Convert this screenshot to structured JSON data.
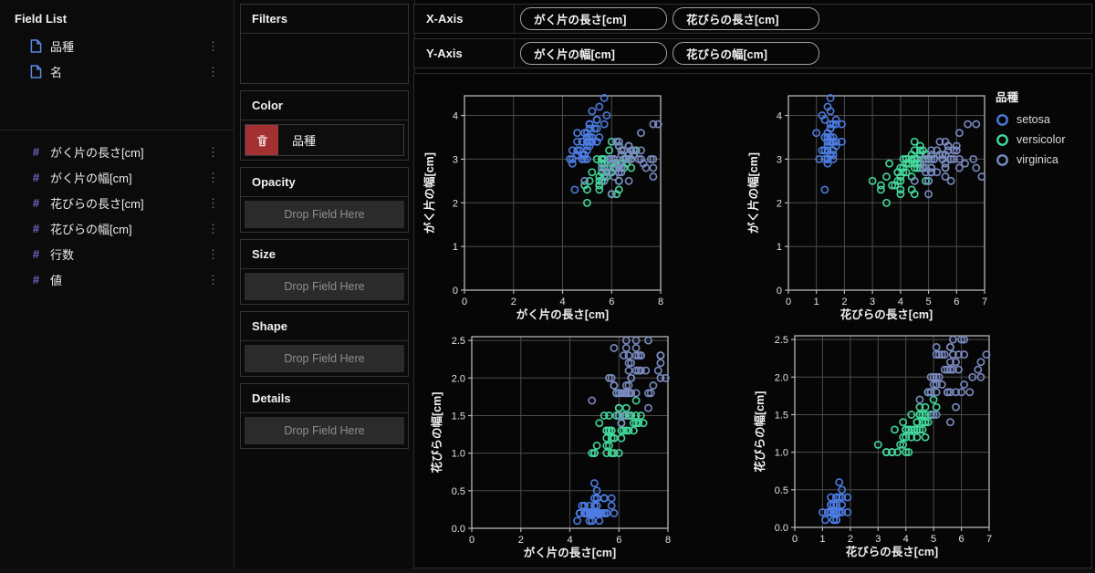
{
  "sidebar": {
    "title": "Field List",
    "dimension_fields": [
      {
        "label": "品種"
      },
      {
        "label": "名"
      }
    ],
    "measure_fields": [
      {
        "label": "がく片の長さ[cm]"
      },
      {
        "label": "がく片の幅[cm]"
      },
      {
        "label": "花びらの長さ[cm]"
      },
      {
        "label": "花びらの幅[cm]"
      },
      {
        "label": "行数"
      },
      {
        "label": "値"
      }
    ]
  },
  "icons": {
    "numeric_field": "#",
    "menu": "⋮"
  },
  "encoding_panel": {
    "filters": {
      "title": "Filters"
    },
    "color": {
      "title": "Color",
      "field": "品種"
    },
    "opacity": {
      "title": "Opacity",
      "placeholder": "Drop Field Here"
    },
    "size": {
      "title": "Size",
      "placeholder": "Drop Field Here"
    },
    "shape": {
      "title": "Shape",
      "placeholder": "Drop Field Here"
    },
    "details": {
      "title": "Details",
      "placeholder": "Drop Field Here"
    }
  },
  "axis_shelf": {
    "x_label": "X-Axis",
    "x_fields": [
      "がく片の長さ[cm]",
      "花びらの長さ[cm]"
    ],
    "y_label": "Y-Axis",
    "y_fields": [
      "がく片の幅[cm]",
      "花びらの幅[cm]"
    ]
  },
  "legend": {
    "title": "品種",
    "items": [
      {
        "label": "setosa",
        "color": "#4d7ce2"
      },
      {
        "label": "versicolor",
        "color": "#45d99c"
      },
      {
        "label": "virginica",
        "color": "#7b8cc2"
      }
    ]
  },
  "chart_data": {
    "type": "scatter",
    "grid": true,
    "legend_position": "top-right",
    "point_columns": [
      "がく片の長さ[cm]",
      "がく片の幅[cm]",
      "花びらの長さ[cm]",
      "花びらの幅[cm]"
    ],
    "charts": [
      {
        "xi": 0,
        "yi": 1,
        "xlabel": "がく片の長さ[cm]",
        "ylabel": "がく片の幅[cm]",
        "xlim": [
          0,
          8
        ],
        "ylim": [
          0,
          4.45
        ],
        "xticks": [
          [
            0,
            "0"
          ],
          [
            2,
            "2"
          ],
          [
            4,
            "4"
          ],
          [
            6,
            "6"
          ],
          [
            8,
            "8"
          ]
        ],
        "yticks": [
          [
            0,
            "0"
          ],
          [
            1,
            "1"
          ],
          [
            2,
            "2"
          ],
          [
            3,
            "3"
          ],
          [
            4,
            "4"
          ]
        ]
      },
      {
        "xi": 2,
        "yi": 1,
        "xlabel": "花びらの長さ[cm]",
        "ylabel": "がく片の幅[cm]",
        "xlim": [
          0,
          7
        ],
        "ylim": [
          0,
          4.45
        ],
        "xticks": [
          [
            0,
            "0"
          ],
          [
            1,
            "1"
          ],
          [
            2,
            "2"
          ],
          [
            3,
            "3"
          ],
          [
            4,
            "4"
          ],
          [
            5,
            "5"
          ],
          [
            6,
            "6"
          ],
          [
            7,
            "7"
          ]
        ],
        "yticks": [
          [
            0,
            "0"
          ],
          [
            1,
            "1"
          ],
          [
            2,
            "2"
          ],
          [
            3,
            "3"
          ],
          [
            4,
            "4"
          ]
        ]
      },
      {
        "xi": 0,
        "yi": 3,
        "xlabel": "がく片の長さ[cm]",
        "ylabel": "花びらの幅[cm]",
        "xlim": [
          0,
          8
        ],
        "ylim": [
          0,
          2.55
        ],
        "xticks": [
          [
            0,
            "0"
          ],
          [
            2,
            "2"
          ],
          [
            4,
            "4"
          ],
          [
            6,
            "6"
          ],
          [
            8,
            "8"
          ]
        ],
        "yticks": [
          [
            0,
            "0.0"
          ],
          [
            0.5,
            "0.5"
          ],
          [
            1,
            "1.0"
          ],
          [
            1.5,
            "1.5"
          ],
          [
            2,
            "2.0"
          ],
          [
            2.5,
            "2.5"
          ]
        ]
      },
      {
        "xi": 2,
        "yi": 3,
        "xlabel": "花びらの長さ[cm]",
        "ylabel": "花びらの幅[cm]",
        "xlim": [
          0,
          7
        ],
        "ylim": [
          0,
          2.55
        ],
        "xticks": [
          [
            0,
            "0"
          ],
          [
            1,
            "1"
          ],
          [
            2,
            "2"
          ],
          [
            3,
            "3"
          ],
          [
            4,
            "4"
          ],
          [
            5,
            "5"
          ],
          [
            6,
            "6"
          ],
          [
            7,
            "7"
          ]
        ],
        "yticks": [
          [
            0,
            "0.0"
          ],
          [
            0.5,
            "0.5"
          ],
          [
            1,
            "1.0"
          ],
          [
            1.5,
            "1.5"
          ],
          [
            2,
            "2.0"
          ],
          [
            2.5,
            "2.5"
          ]
        ]
      }
    ],
    "series": [
      {
        "name": "setosa",
        "color": "#4d7ce2",
        "points": [
          [
            5.1,
            3.5,
            1.4,
            0.2
          ],
          [
            4.9,
            3.0,
            1.4,
            0.2
          ],
          [
            4.7,
            3.2,
            1.3,
            0.2
          ],
          [
            4.6,
            3.1,
            1.5,
            0.2
          ],
          [
            5.0,
            3.6,
            1.4,
            0.2
          ],
          [
            5.4,
            3.9,
            1.7,
            0.4
          ],
          [
            4.6,
            3.4,
            1.4,
            0.3
          ],
          [
            5.0,
            3.4,
            1.5,
            0.2
          ],
          [
            4.4,
            2.9,
            1.4,
            0.2
          ],
          [
            4.9,
            3.1,
            1.5,
            0.1
          ],
          [
            5.4,
            3.7,
            1.5,
            0.2
          ],
          [
            4.8,
            3.4,
            1.6,
            0.2
          ],
          [
            4.8,
            3.0,
            1.4,
            0.1
          ],
          [
            4.3,
            3.0,
            1.1,
            0.1
          ],
          [
            5.8,
            4.0,
            1.2,
            0.2
          ],
          [
            5.7,
            4.4,
            1.5,
            0.4
          ],
          [
            5.4,
            3.9,
            1.3,
            0.4
          ],
          [
            5.1,
            3.5,
            1.4,
            0.3
          ],
          [
            5.7,
            3.8,
            1.7,
            0.3
          ],
          [
            5.1,
            3.8,
            1.5,
            0.3
          ],
          [
            5.4,
            3.4,
            1.7,
            0.2
          ],
          [
            5.1,
            3.7,
            1.5,
            0.4
          ],
          [
            4.6,
            3.6,
            1.0,
            0.2
          ],
          [
            5.1,
            3.3,
            1.7,
            0.5
          ],
          [
            4.8,
            3.4,
            1.9,
            0.2
          ],
          [
            5.0,
            3.0,
            1.6,
            0.2
          ],
          [
            5.0,
            3.4,
            1.6,
            0.4
          ],
          [
            5.2,
            3.5,
            1.5,
            0.2
          ],
          [
            5.2,
            3.4,
            1.4,
            0.2
          ],
          [
            4.7,
            3.2,
            1.6,
            0.2
          ],
          [
            4.8,
            3.1,
            1.6,
            0.2
          ],
          [
            5.4,
            3.4,
            1.5,
            0.4
          ],
          [
            5.2,
            4.1,
            1.5,
            0.1
          ],
          [
            5.5,
            4.2,
            1.4,
            0.2
          ],
          [
            4.9,
            3.1,
            1.5,
            0.2
          ],
          [
            5.0,
            3.2,
            1.2,
            0.2
          ],
          [
            5.5,
            3.5,
            1.3,
            0.2
          ],
          [
            4.9,
            3.6,
            1.4,
            0.1
          ],
          [
            4.4,
            3.0,
            1.3,
            0.2
          ],
          [
            5.1,
            3.4,
            1.5,
            0.2
          ],
          [
            5.0,
            3.5,
            1.3,
            0.3
          ],
          [
            4.5,
            2.3,
            1.3,
            0.3
          ],
          [
            4.4,
            3.2,
            1.3,
            0.2
          ],
          [
            5.0,
            3.5,
            1.6,
            0.6
          ],
          [
            5.1,
            3.8,
            1.9,
            0.4
          ],
          [
            4.8,
            3.0,
            1.4,
            0.3
          ],
          [
            5.1,
            3.8,
            1.6,
            0.2
          ],
          [
            4.6,
            3.2,
            1.4,
            0.2
          ],
          [
            5.3,
            3.7,
            1.5,
            0.2
          ],
          [
            5.0,
            3.3,
            1.4,
            0.2
          ]
        ]
      },
      {
        "name": "versicolor",
        "color": "#45d99c",
        "points": [
          [
            7.0,
            3.2,
            4.7,
            1.4
          ],
          [
            6.4,
            3.2,
            4.5,
            1.5
          ],
          [
            6.9,
            3.1,
            4.9,
            1.5
          ],
          [
            5.5,
            2.3,
            4.0,
            1.3
          ],
          [
            6.5,
            2.8,
            4.6,
            1.5
          ],
          [
            5.7,
            2.8,
            4.5,
            1.3
          ],
          [
            6.3,
            3.3,
            4.7,
            1.6
          ],
          [
            4.9,
            2.4,
            3.3,
            1.0
          ],
          [
            6.6,
            2.9,
            4.6,
            1.3
          ],
          [
            5.2,
            2.7,
            3.9,
            1.4
          ],
          [
            5.0,
            2.0,
            3.5,
            1.0
          ],
          [
            5.9,
            3.0,
            4.2,
            1.5
          ],
          [
            6.0,
            2.2,
            4.0,
            1.0
          ],
          [
            6.1,
            2.9,
            4.7,
            1.4
          ],
          [
            5.6,
            2.9,
            3.6,
            1.3
          ],
          [
            6.7,
            3.1,
            4.4,
            1.4
          ],
          [
            5.6,
            3.0,
            4.5,
            1.5
          ],
          [
            5.8,
            2.7,
            4.1,
            1.0
          ],
          [
            6.2,
            2.2,
            4.5,
            1.5
          ],
          [
            5.6,
            2.5,
            3.9,
            1.1
          ],
          [
            5.9,
            3.2,
            4.8,
            1.8
          ],
          [
            6.1,
            2.8,
            4.0,
            1.3
          ],
          [
            6.3,
            2.5,
            4.9,
            1.5
          ],
          [
            6.1,
            2.8,
            4.7,
            1.2
          ],
          [
            6.4,
            2.9,
            4.3,
            1.3
          ],
          [
            6.6,
            3.0,
            4.4,
            1.4
          ],
          [
            6.8,
            2.8,
            4.8,
            1.4
          ],
          [
            6.7,
            3.0,
            5.0,
            1.7
          ],
          [
            6.0,
            2.9,
            4.5,
            1.5
          ],
          [
            5.7,
            2.6,
            3.5,
            1.0
          ],
          [
            5.5,
            2.4,
            3.8,
            1.1
          ],
          [
            5.5,
            2.4,
            3.7,
            1.0
          ],
          [
            5.8,
            2.7,
            3.9,
            1.2
          ],
          [
            6.0,
            2.7,
            5.1,
            1.6
          ],
          [
            5.4,
            3.0,
            4.5,
            1.5
          ],
          [
            6.0,
            3.4,
            4.5,
            1.6
          ],
          [
            6.7,
            3.1,
            4.7,
            1.5
          ],
          [
            6.3,
            2.3,
            4.4,
            1.3
          ],
          [
            5.6,
            3.0,
            4.1,
            1.3
          ],
          [
            5.5,
            2.5,
            4.0,
            1.3
          ],
          [
            5.5,
            2.6,
            4.4,
            1.2
          ],
          [
            6.1,
            3.0,
            4.6,
            1.4
          ],
          [
            5.8,
            2.6,
            4.0,
            1.2
          ],
          [
            5.0,
            2.3,
            3.3,
            1.0
          ],
          [
            5.6,
            2.7,
            4.2,
            1.3
          ],
          [
            5.7,
            3.0,
            4.2,
            1.2
          ],
          [
            5.7,
            2.9,
            4.2,
            1.3
          ],
          [
            6.2,
            2.9,
            4.3,
            1.3
          ],
          [
            5.1,
            2.5,
            3.0,
            1.1
          ],
          [
            5.7,
            2.8,
            4.1,
            1.3
          ]
        ]
      },
      {
        "name": "virginica",
        "color": "#7b8cc2",
        "points": [
          [
            6.3,
            3.3,
            6.0,
            2.5
          ],
          [
            5.8,
            2.7,
            5.1,
            1.9
          ],
          [
            7.1,
            3.0,
            5.9,
            2.1
          ],
          [
            6.3,
            2.9,
            5.6,
            1.8
          ],
          [
            6.5,
            3.0,
            5.8,
            2.2
          ],
          [
            7.6,
            3.0,
            6.6,
            2.1
          ],
          [
            4.9,
            2.5,
            4.5,
            1.7
          ],
          [
            7.3,
            2.9,
            6.3,
            1.8
          ],
          [
            6.7,
            2.5,
            5.8,
            1.8
          ],
          [
            7.2,
            3.6,
            6.1,
            2.5
          ],
          [
            6.5,
            3.2,
            5.1,
            2.0
          ],
          [
            6.4,
            2.7,
            5.3,
            1.9
          ],
          [
            6.8,
            3.0,
            5.5,
            2.1
          ],
          [
            5.7,
            2.5,
            5.0,
            2.0
          ],
          [
            5.8,
            2.8,
            5.1,
            2.4
          ],
          [
            6.4,
            3.2,
            5.3,
            2.3
          ],
          [
            6.5,
            3.0,
            5.5,
            1.8
          ],
          [
            7.7,
            3.8,
            6.7,
            2.2
          ],
          [
            7.7,
            2.6,
            6.9,
            2.3
          ],
          [
            6.0,
            2.2,
            5.0,
            1.5
          ],
          [
            6.9,
            3.2,
            5.7,
            2.3
          ],
          [
            5.6,
            2.8,
            4.9,
            2.0
          ],
          [
            7.7,
            2.8,
            6.7,
            2.0
          ],
          [
            6.3,
            2.7,
            4.9,
            1.8
          ],
          [
            6.7,
            3.3,
            5.7,
            2.1
          ],
          [
            7.2,
            3.2,
            6.0,
            1.8
          ],
          [
            6.2,
            2.8,
            4.8,
            1.8
          ],
          [
            6.1,
            3.0,
            4.9,
            1.8
          ],
          [
            6.4,
            2.8,
            5.6,
            2.1
          ],
          [
            7.2,
            3.0,
            5.8,
            1.6
          ],
          [
            7.4,
            2.8,
            6.1,
            1.9
          ],
          [
            7.9,
            3.8,
            6.4,
            2.0
          ],
          [
            6.4,
            2.8,
            5.6,
            2.2
          ],
          [
            6.3,
            2.8,
            5.1,
            1.5
          ],
          [
            6.1,
            2.6,
            5.6,
            1.4
          ],
          [
            7.7,
            3.0,
            6.1,
            2.3
          ],
          [
            6.3,
            3.4,
            5.6,
            2.4
          ],
          [
            6.4,
            3.1,
            5.5,
            1.8
          ],
          [
            6.0,
            3.0,
            4.8,
            1.8
          ],
          [
            6.9,
            3.1,
            5.4,
            2.1
          ],
          [
            6.7,
            3.1,
            5.6,
            2.4
          ],
          [
            6.9,
            3.1,
            5.1,
            2.3
          ],
          [
            5.8,
            2.7,
            5.1,
            1.9
          ],
          [
            6.8,
            3.2,
            5.9,
            2.3
          ],
          [
            6.7,
            3.3,
            5.7,
            2.5
          ],
          [
            6.7,
            3.0,
            5.2,
            2.3
          ],
          [
            6.3,
            2.5,
            5.0,
            1.9
          ],
          [
            6.5,
            3.0,
            5.2,
            2.0
          ],
          [
            6.2,
            3.4,
            5.4,
            2.3
          ],
          [
            5.9,
            3.0,
            5.1,
            1.8
          ]
        ]
      }
    ]
  }
}
